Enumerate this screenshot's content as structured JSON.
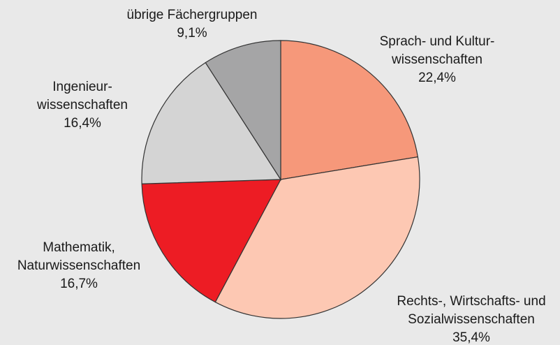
{
  "chart_data": {
    "type": "pie",
    "categories": [
      [
        "Sprach- und Kultur-",
        "wissenschaften"
      ],
      [
        "Rechts-, Wirtschafts- und",
        "Sozialwissenschaften"
      ],
      [
        "Mathematik,",
        "Naturwissenschaften"
      ],
      [
        "Ingenieur-",
        "wissenschaften"
      ],
      [
        "übrige Fächergruppen"
      ]
    ],
    "values": [
      22.4,
      35.4,
      16.7,
      16.4,
      9.1
    ],
    "value_labels": [
      "22,4%",
      "35,4%",
      "16,7%",
      "16,4%",
      "9,1%"
    ],
    "colors": [
      "#f6987a",
      "#fdc8b3",
      "#ed1c24",
      "#d4d4d4",
      "#a5a5a6"
    ]
  }
}
